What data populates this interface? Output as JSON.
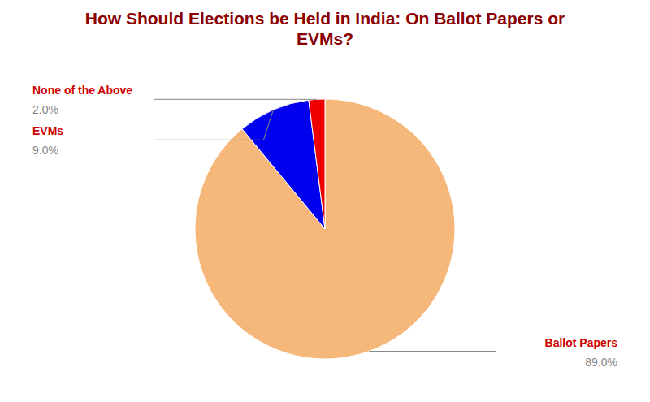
{
  "chart_data": {
    "type": "pie",
    "title": "How Should Elections be Held in India: On Ballot Papers or\nEVMs?",
    "categories": [
      "Ballot Papers",
      "EVMs",
      "None of the Above"
    ],
    "values": [
      89.0,
      9.0,
      2.0
    ],
    "value_labels": [
      "89.0%",
      "9.0%",
      "2.0%"
    ],
    "colors": [
      "#f5b87a",
      "#0000ee",
      "#ee0000"
    ],
    "data_labels": true
  }
}
